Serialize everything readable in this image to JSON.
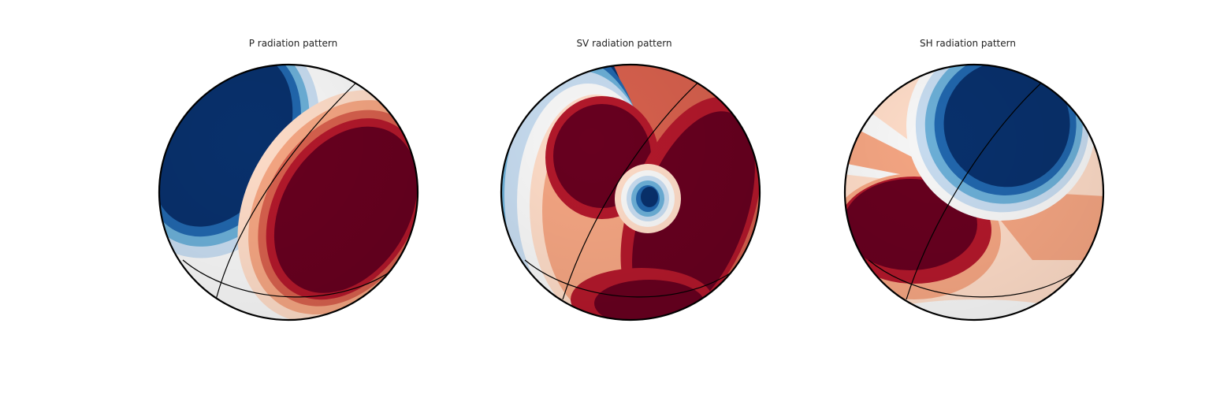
{
  "figure": {
    "panels": [
      {
        "title": "P radiation pattern",
        "pattern": "P"
      },
      {
        "title": "SV radiation pattern",
        "pattern": "SV"
      },
      {
        "title": "SH radiation pattern",
        "pattern": "SH"
      }
    ],
    "colors": {
      "blue_dark": "#08306b",
      "blue_mid": "#2166ac",
      "blue_light": "#6baed6",
      "blue_pale": "#c6dbef",
      "white": "#f7f7f7",
      "red_pale": "#fddbc7",
      "red_light": "#f4a582",
      "red_mid": "#d6604d",
      "red_strong": "#b2182b",
      "red_dark": "#67001f"
    }
  }
}
